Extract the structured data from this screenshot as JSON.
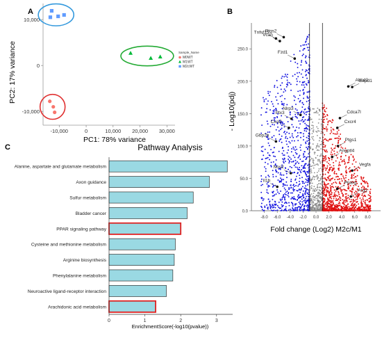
{
  "panels": {
    "a": "A",
    "b": "B",
    "c": "C"
  },
  "chart_data": [
    {
      "type": "scatter",
      "xlabel": "PC1: 78% variance",
      "ylabel": "PC2: 17% variance",
      "xticks": [
        "-10,000",
        "0",
        "10,000",
        "20,000",
        "30,000"
      ],
      "xtick_values": [
        -10000,
        0,
        10000,
        20000,
        30000
      ],
      "yticks": [
        "10,000",
        "0",
        "-10,000"
      ],
      "ytick_values": [
        10000,
        0,
        -10000
      ],
      "xlim": [
        -16000,
        33000
      ],
      "ylim": [
        -13000,
        13500
      ],
      "legend_title": "Sample_Name",
      "legend_position": "right",
      "series": [
        {
          "name": "M0WT",
          "marker": "circle",
          "color": "#F8766D",
          "x": [
            -13500,
            -12200,
            -11700
          ],
          "y": [
            -7800,
            -9000,
            -10200
          ],
          "ellipse": "#E03030"
        },
        {
          "name": "M1WT",
          "marker": "triangle",
          "color": "#00BA38",
          "x": [
            16500,
            24000,
            27500
          ],
          "y": [
            2700,
            1600,
            1900
          ],
          "ellipse": "#22AA33"
        },
        {
          "name": "M2cWT",
          "marker": "square",
          "color": "#619CFF",
          "x": [
            -12800,
            -10400,
            -8200,
            -13300
          ],
          "y": [
            11900,
            10700,
            11000,
            10500
          ],
          "ellipse": "#3399DD"
        }
      ]
    },
    {
      "type": "scatter",
      "subtype": "volcano",
      "xlabel": "Fold change (Log2)  M2c/M1",
      "ylabel": "- Log10(pdj)",
      "xticks": [
        "-8.0",
        "-6.0",
        "-4.0",
        "-2.0",
        "0.0",
        "2.0",
        "4.0",
        "6.0",
        "8.0"
      ],
      "xtick_values": [
        -8,
        -6,
        -4,
        -2,
        0,
        2,
        4,
        6,
        8
      ],
      "yticks": [
        "0.0",
        "50.0",
        "100.0",
        "150.0",
        "200.0",
        "250.0"
      ],
      "ytick_values": [
        0,
        50,
        100,
        150,
        200,
        250
      ],
      "xlim": [
        -10,
        10
      ],
      "ylim": [
        0,
        290
      ],
      "threshold_lines_x": [
        -1,
        1
      ],
      "colors": {
        "down": "#1010E0",
        "up": "#E01010",
        "ns": "#8C8C8C"
      },
      "labeled_genes": [
        {
          "gene": "Tnfsf15",
          "x": -6.2,
          "y": 266,
          "side": "left"
        },
        {
          "gene": "Ptgs2",
          "x": -5.0,
          "y": 268,
          "side": "left"
        },
        {
          "gene": "Vcan",
          "x": -5.6,
          "y": 262,
          "side": "left"
        },
        {
          "gene": "Fzd1",
          "x": -3.3,
          "y": 235,
          "side": "left"
        },
        {
          "gene": "Nlrp3",
          "x": -2.4,
          "y": 148,
          "side": "left"
        },
        {
          "gene": "Ptx3",
          "x": -3.8,
          "y": 142,
          "side": "left"
        },
        {
          "gene": "Cxcl2",
          "x": -4.2,
          "y": 128,
          "side": "left"
        },
        {
          "gene": "Gbp2b",
          "x": -6.2,
          "y": 107,
          "side": "left"
        },
        {
          "gene": "Nos2",
          "x": -3.9,
          "y": 58,
          "side": "left"
        },
        {
          "gene": "Il1b",
          "x": -6.0,
          "y": 37,
          "side": "left"
        },
        {
          "gene": "Abcd2",
          "x": 5.0,
          "y": 192,
          "side": "right"
        },
        {
          "gene": "Eepd1",
          "x": 5.6,
          "y": 191,
          "side": "right"
        },
        {
          "gene": "Cdca7l",
          "x": 3.7,
          "y": 143,
          "side": "right"
        },
        {
          "gene": "Cxcr4",
          "x": 3.3,
          "y": 128,
          "side": "right"
        },
        {
          "gene": "Ptgs1",
          "x": 3.4,
          "y": 100,
          "side": "right"
        },
        {
          "gene": "Angptl4",
          "x": 2.5,
          "y": 83,
          "side": "right"
        },
        {
          "gene": "Vegfa",
          "x": 5.6,
          "y": 62,
          "side": "right"
        },
        {
          "gene": "Pparg",
          "x": 3.3,
          "y": 34,
          "side": "right"
        },
        {
          "gene": "Arg1",
          "x": 5.4,
          "y": 22,
          "side": "right"
        }
      ]
    },
    {
      "type": "bar",
      "orientation": "horizontal",
      "title": "Pathway Analysis",
      "xlabel": "EnrichmentScore(-log10(pvalue))",
      "xticks": [
        "0",
        "1",
        "2",
        "3"
      ],
      "xtick_values": [
        0,
        1,
        2,
        3
      ],
      "xlim": [
        0,
        3.45
      ],
      "bar_color": "#9AD9E3",
      "highlight_color": "#E02020",
      "categories": [
        "Alanine, aspartate and glutamate metabolism",
        "Axon guidance",
        "Sulfur metabolism",
        "Bladder cancer",
        "PPAR signaling pathway",
        "Cysteine and methionine metabolism",
        "Arginine biosynthesis",
        "Phenylalanine metabolism",
        "Neuroactive ligand-receptor interaction",
        "Arachidonic acid metabolism"
      ],
      "values": [
        3.3,
        2.8,
        2.35,
        2.18,
        2.0,
        1.85,
        1.82,
        1.78,
        1.6,
        1.3
      ],
      "highlighted": [
        false,
        false,
        false,
        false,
        true,
        false,
        false,
        false,
        false,
        true
      ]
    }
  ]
}
